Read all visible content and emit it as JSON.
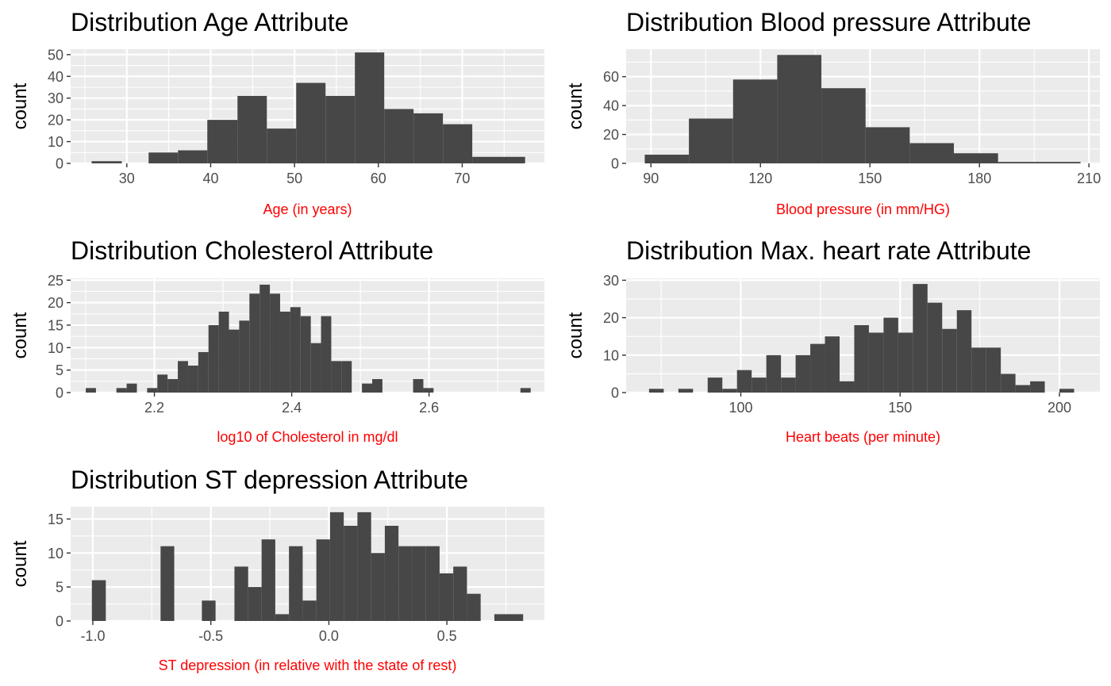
{
  "chart_data": [
    {
      "type": "bar",
      "title": "Distribution Age Attribute",
      "xlabel": "Age (in years)",
      "ylabel": "count",
      "xlim": [
        23.3,
        79.8
      ],
      "ylim": [
        0,
        52.5
      ],
      "xticks": [
        30,
        40,
        50,
        60,
        70
      ],
      "xtick_labels": [
        "30",
        "40",
        "50",
        "60",
        "70"
      ],
      "yticks": [
        0,
        10,
        20,
        30,
        40,
        50
      ],
      "ytick_labels": [
        "0",
        "10",
        "20",
        "30",
        "40",
        "50"
      ],
      "grid": true,
      "bins": [
        {
          "x0": 25.8,
          "x1": 29.4,
          "count": 1
        },
        {
          "x0": 32.6,
          "x1": 36.1,
          "count": 5
        },
        {
          "x0": 36.1,
          "x1": 39.6,
          "count": 6
        },
        {
          "x0": 39.6,
          "x1": 43.2,
          "count": 20
        },
        {
          "x0": 43.2,
          "x1": 46.7,
          "count": 31
        },
        {
          "x0": 46.7,
          "x1": 50.2,
          "count": 16
        },
        {
          "x0": 50.2,
          "x1": 53.7,
          "count": 37
        },
        {
          "x0": 53.7,
          "x1": 57.2,
          "count": 31
        },
        {
          "x0": 57.2,
          "x1": 60.7,
          "count": 51
        },
        {
          "x0": 60.7,
          "x1": 64.2,
          "count": 25
        },
        {
          "x0": 64.2,
          "x1": 67.7,
          "count": 23
        },
        {
          "x0": 67.7,
          "x1": 71.2,
          "count": 18
        },
        {
          "x0": 71.2,
          "x1": 77.5,
          "count": 3
        }
      ]
    },
    {
      "type": "bar",
      "title": "Distribution Blood pressure Attribute",
      "xlabel": "Blood pressure (in mm/HG)",
      "ylabel": "count",
      "xlim": [
        83.2,
        213.0
      ],
      "ylim": [
        0,
        79.0
      ],
      "xticks": [
        90,
        120,
        150,
        180,
        210
      ],
      "xtick_labels": [
        "90",
        "120",
        "150",
        "180",
        "210"
      ],
      "yticks": [
        0,
        20,
        40,
        60
      ],
      "ytick_labels": [
        "0",
        "20",
        "40",
        "60"
      ],
      "grid": true,
      "bins": [
        {
          "x0": 88.3,
          "x1": 100.4,
          "count": 6
        },
        {
          "x0": 100.4,
          "x1": 112.5,
          "count": 31
        },
        {
          "x0": 112.5,
          "x1": 124.6,
          "count": 58
        },
        {
          "x0": 124.6,
          "x1": 136.7,
          "count": 75
        },
        {
          "x0": 136.7,
          "x1": 148.8,
          "count": 52
        },
        {
          "x0": 148.8,
          "x1": 160.9,
          "count": 25
        },
        {
          "x0": 160.9,
          "x1": 173.0,
          "count": 14
        },
        {
          "x0": 173.0,
          "x1": 185.1,
          "count": 7
        },
        {
          "x0": 185.1,
          "x1": 207.7,
          "count": 1
        }
      ]
    },
    {
      "type": "bar",
      "title": "Distribution Cholesterol Attribute",
      "xlabel": "log10 of Cholesterol in mg/dl",
      "ylabel": "count",
      "xlim": [
        2.078,
        2.768
      ],
      "ylim": [
        0,
        25.4
      ],
      "xticks": [
        2.2,
        2.4,
        2.6
      ],
      "xtick_labels": [
        "2.2",
        "2.4",
        "2.6"
      ],
      "yticks": [
        0,
        5,
        10,
        15,
        20,
        25
      ],
      "ytick_labels": [
        "0",
        "5",
        "10",
        "15",
        "20",
        "25"
      ],
      "grid": true,
      "bins": [
        {
          "x0": 2.1,
          "x1": 2.1149,
          "count": 1
        },
        {
          "x0": 2.1447,
          "x1": 2.1596,
          "count": 1
        },
        {
          "x0": 2.1596,
          "x1": 2.1745,
          "count": 2
        },
        {
          "x0": 2.1894,
          "x1": 2.2043,
          "count": 1
        },
        {
          "x0": 2.2043,
          "x1": 2.2192,
          "count": 4
        },
        {
          "x0": 2.2192,
          "x1": 2.2341,
          "count": 3
        },
        {
          "x0": 2.2341,
          "x1": 2.249,
          "count": 7
        },
        {
          "x0": 2.249,
          "x1": 2.2639,
          "count": 6
        },
        {
          "x0": 2.2639,
          "x1": 2.2788,
          "count": 9
        },
        {
          "x0": 2.2788,
          "x1": 2.2937,
          "count": 15
        },
        {
          "x0": 2.2937,
          "x1": 2.3086,
          "count": 18
        },
        {
          "x0": 2.3086,
          "x1": 2.3235,
          "count": 14
        },
        {
          "x0": 2.3235,
          "x1": 2.3384,
          "count": 16
        },
        {
          "x0": 2.3384,
          "x1": 2.3533,
          "count": 22
        },
        {
          "x0": 2.3533,
          "x1": 2.3682,
          "count": 24
        },
        {
          "x0": 2.3682,
          "x1": 2.3831,
          "count": 22
        },
        {
          "x0": 2.3831,
          "x1": 2.398,
          "count": 18
        },
        {
          "x0": 2.398,
          "x1": 2.4129,
          "count": 19
        },
        {
          "x0": 2.4129,
          "x1": 2.4278,
          "count": 17
        },
        {
          "x0": 2.4278,
          "x1": 2.4427,
          "count": 11
        },
        {
          "x0": 2.4427,
          "x1": 2.4576,
          "count": 17
        },
        {
          "x0": 2.4576,
          "x1": 2.4725,
          "count": 7
        },
        {
          "x0": 2.4725,
          "x1": 2.4874,
          "count": 7
        },
        {
          "x0": 2.5023,
          "x1": 2.5172,
          "count": 2
        },
        {
          "x0": 2.5172,
          "x1": 2.5321,
          "count": 3
        },
        {
          "x0": 2.5768,
          "x1": 2.5917,
          "count": 3
        },
        {
          "x0": 2.5917,
          "x1": 2.6066,
          "count": 1
        },
        {
          "x0": 2.7331,
          "x1": 2.748,
          "count": 1
        }
      ]
    },
    {
      "type": "bar",
      "title": "Distribution Max. heart rate Attribute",
      "xlabel": "Heart beats (per minute)",
      "ylabel": "count",
      "xlim": [
        64.0,
        212.7
      ],
      "ylim": [
        0,
        30.5
      ],
      "xticks": [
        100,
        150,
        200
      ],
      "xtick_labels": [
        "100",
        "150",
        "200"
      ],
      "yticks": [
        0,
        10,
        20,
        30
      ],
      "ytick_labels": [
        "0",
        "10",
        "20",
        "30"
      ],
      "grid": true,
      "bins": [
        {
          "x0": 71.2,
          "x1": 75.8,
          "count": 1
        },
        {
          "x0": 80.4,
          "x1": 85.0,
          "count": 1
        },
        {
          "x0": 89.6,
          "x1": 94.2,
          "count": 4
        },
        {
          "x0": 94.2,
          "x1": 98.8,
          "count": 1
        },
        {
          "x0": 98.8,
          "x1": 103.4,
          "count": 6
        },
        {
          "x0": 103.4,
          "x1": 108.0,
          "count": 4
        },
        {
          "x0": 108.0,
          "x1": 112.6,
          "count": 10
        },
        {
          "x0": 112.6,
          "x1": 117.2,
          "count": 4
        },
        {
          "x0": 117.2,
          "x1": 121.8,
          "count": 10
        },
        {
          "x0": 121.8,
          "x1": 126.4,
          "count": 13
        },
        {
          "x0": 126.4,
          "x1": 131.0,
          "count": 15
        },
        {
          "x0": 131.0,
          "x1": 135.6,
          "count": 3
        },
        {
          "x0": 135.6,
          "x1": 140.2,
          "count": 18
        },
        {
          "x0": 140.2,
          "x1": 144.8,
          "count": 16
        },
        {
          "x0": 144.8,
          "x1": 149.4,
          "count": 20
        },
        {
          "x0": 149.4,
          "x1": 154.0,
          "count": 16
        },
        {
          "x0": 154.0,
          "x1": 158.6,
          "count": 29
        },
        {
          "x0": 158.6,
          "x1": 163.2,
          "count": 24
        },
        {
          "x0": 163.2,
          "x1": 167.8,
          "count": 17
        },
        {
          "x0": 167.8,
          "x1": 172.4,
          "count": 22
        },
        {
          "x0": 172.4,
          "x1": 177.0,
          "count": 12
        },
        {
          "x0": 177.0,
          "x1": 181.6,
          "count": 12
        },
        {
          "x0": 181.6,
          "x1": 186.2,
          "count": 5
        },
        {
          "x0": 186.2,
          "x1": 190.8,
          "count": 2
        },
        {
          "x0": 190.8,
          "x1": 195.4,
          "count": 3
        },
        {
          "x0": 200.0,
          "x1": 204.6,
          "count": 1
        }
      ]
    },
    {
      "type": "bar",
      "title": "Distribution ST depression Attribute",
      "xlabel": "ST depression (in relative with the state of rest)",
      "ylabel": "count",
      "xlim": [
        -1.094,
        0.913
      ],
      "ylim": [
        0,
        16.8
      ],
      "xticks": [
        -1.0,
        -0.5,
        0.0,
        0.5
      ],
      "xtick_labels": [
        "-1.0",
        "-0.5",
        "0.0",
        "0.5"
      ],
      "yticks": [
        0,
        5,
        10,
        15
      ],
      "ytick_labels": [
        "0",
        "5",
        "10",
        "15"
      ],
      "grid": true,
      "bins": [
        {
          "x0": -1.004,
          "x1": -0.945,
          "count": 6
        },
        {
          "x0": -0.713,
          "x1": -0.655,
          "count": 11
        },
        {
          "x0": -0.538,
          "x1": -0.48,
          "count": 3
        },
        {
          "x0": -0.4,
          "x1": -0.342,
          "count": 8
        },
        {
          "x0": -0.342,
          "x1": -0.285,
          "count": 5
        },
        {
          "x0": -0.285,
          "x1": -0.227,
          "count": 12
        },
        {
          "x0": -0.227,
          "x1": -0.169,
          "count": 1
        },
        {
          "x0": -0.169,
          "x1": -0.111,
          "count": 11
        },
        {
          "x0": -0.111,
          "x1": -0.053,
          "count": 3
        },
        {
          "x0": -0.053,
          "x1": 0.005,
          "count": 12
        },
        {
          "x0": 0.005,
          "x1": 0.063,
          "count": 16
        },
        {
          "x0": 0.063,
          "x1": 0.121,
          "count": 14
        },
        {
          "x0": 0.121,
          "x1": 0.179,
          "count": 16
        },
        {
          "x0": 0.179,
          "x1": 0.237,
          "count": 10
        },
        {
          "x0": 0.237,
          "x1": 0.295,
          "count": 14
        },
        {
          "x0": 0.295,
          "x1": 0.353,
          "count": 11
        },
        {
          "x0": 0.353,
          "x1": 0.411,
          "count": 11
        },
        {
          "x0": 0.411,
          "x1": 0.469,
          "count": 11
        },
        {
          "x0": 0.469,
          "x1": 0.527,
          "count": 7
        },
        {
          "x0": 0.527,
          "x1": 0.585,
          "count": 8
        },
        {
          "x0": 0.585,
          "x1": 0.643,
          "count": 4
        },
        {
          "x0": 0.701,
          "x1": 0.823,
          "count": 1
        }
      ]
    }
  ]
}
